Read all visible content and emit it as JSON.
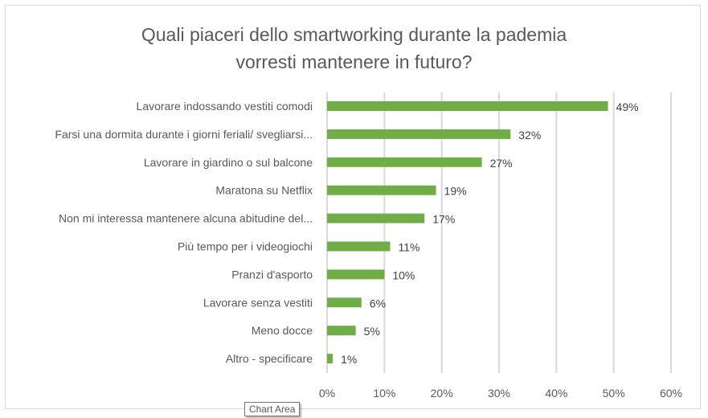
{
  "chart_data": {
    "type": "bar",
    "orientation": "horizontal",
    "title_lines": [
      "Quali piaceri dello smartworking durante la  pademia",
      "vorresti mantenere in futuro?"
    ],
    "categories": [
      "Lavorare indossando vestiti comodi",
      "Farsi una dormita durante i giorni feriali/ svegliarsi...",
      "Lavorare in giardino o sul balcone",
      "Maratona su Netflix",
      "Non mi interessa mantenere alcuna abitudine del...",
      "Più tempo per i videogiochi",
      "Pranzi d'asporto",
      "Lavorare senza vestiti",
      "Meno docce",
      "Altro - specificare"
    ],
    "values": [
      49,
      32,
      27,
      19,
      17,
      11,
      10,
      6,
      5,
      1
    ],
    "data_labels": [
      "49%",
      "32%",
      "27%",
      "19%",
      "17%",
      "11%",
      "10%",
      "6%",
      "5%",
      "1%"
    ],
    "xlim": [
      0,
      60
    ],
    "x_ticks": [
      "0%",
      "10%",
      "20%",
      "30%",
      "40%",
      "50%",
      "60%"
    ],
    "grid": "vertical",
    "bar_color": "#70ad47"
  },
  "tooltip": "Chart Area"
}
